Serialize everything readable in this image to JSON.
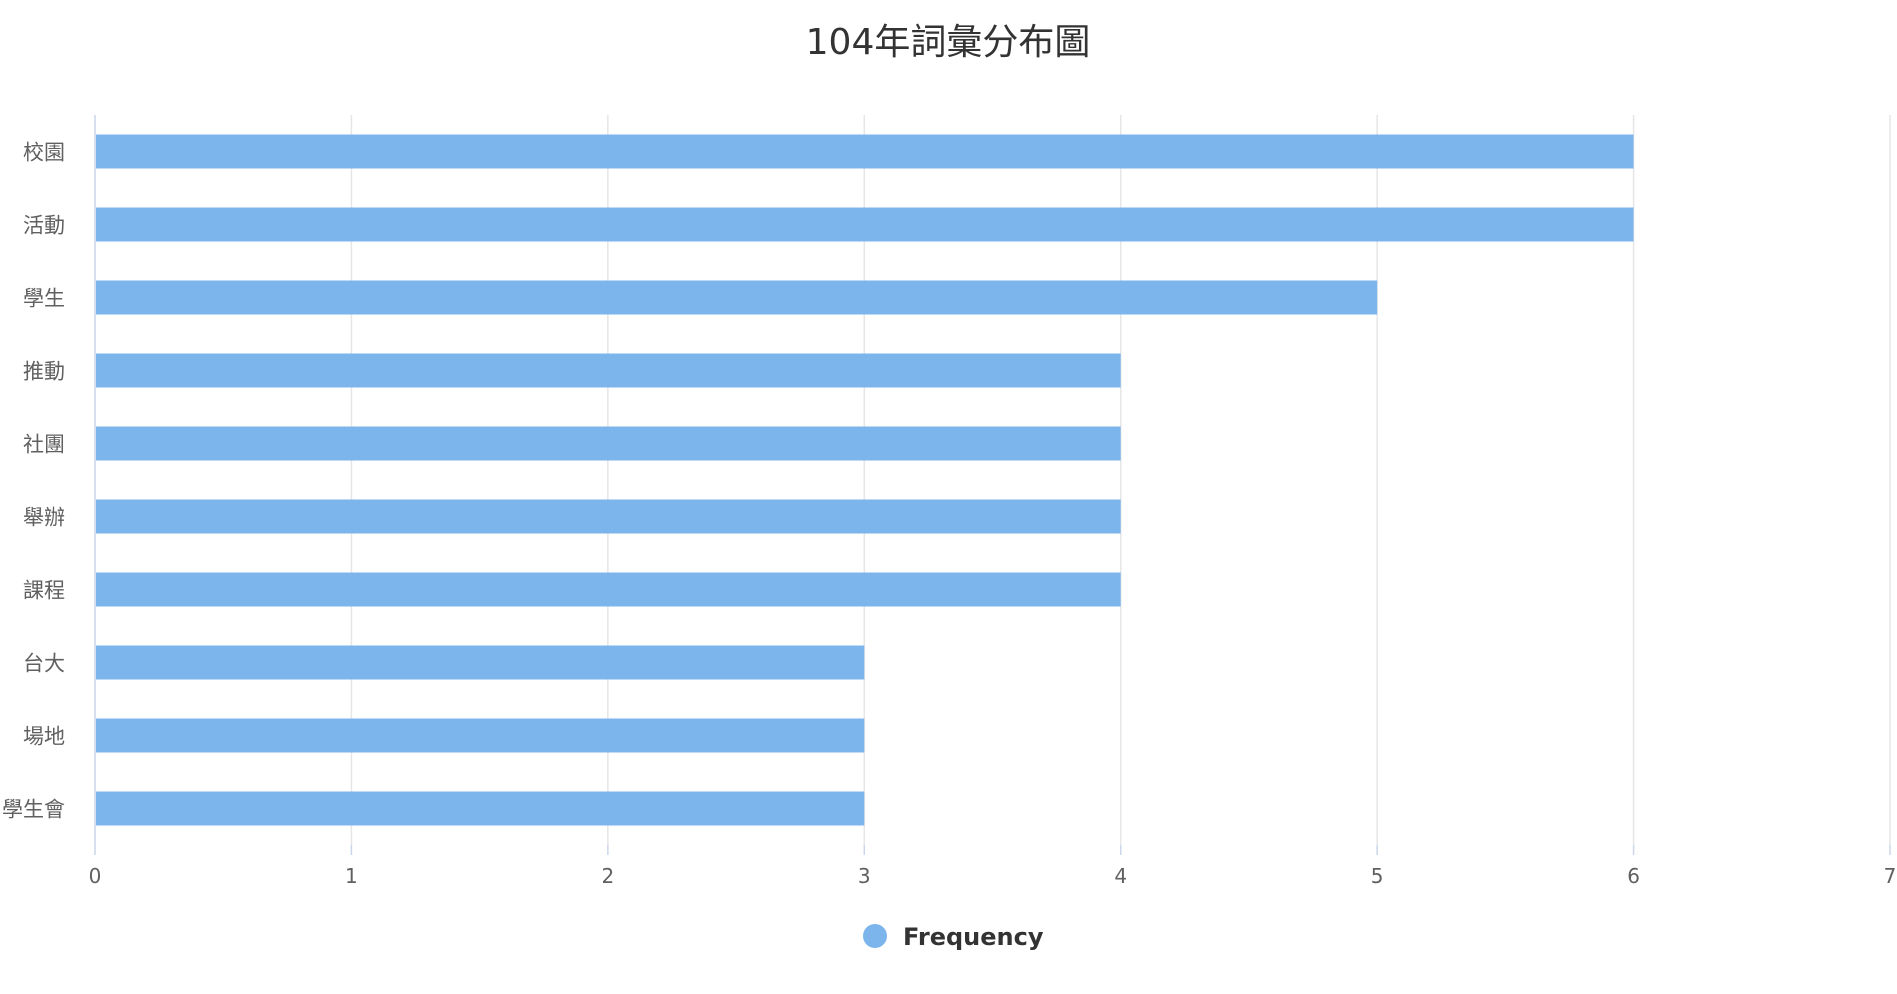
{
  "chart_data": {
    "type": "bar",
    "orientation": "horizontal",
    "title": "104年詞彙分布圖",
    "categories": [
      "校園",
      "活動",
      "學生",
      "推動",
      "社團",
      "舉辦",
      "課程",
      "台大",
      "場地",
      "學生會"
    ],
    "series": [
      {
        "name": "Frequency",
        "values": [
          6,
          6,
          5,
          4,
          4,
          4,
          4,
          3,
          3,
          3
        ],
        "color": "#7cb5ec"
      }
    ],
    "xlim": [
      0,
      7
    ],
    "x_ticks": [
      "0",
      "1",
      "2",
      "3",
      "4",
      "5",
      "6",
      "7"
    ],
    "grid": "vertical",
    "legend": "bottom-center",
    "xlabel": "",
    "ylabel": ""
  },
  "colors": {
    "bar": "#7cb5ec",
    "grid": "#e6e6e6",
    "axis": "#ccd6eb",
    "text": "#606060",
    "title": "#333333"
  }
}
